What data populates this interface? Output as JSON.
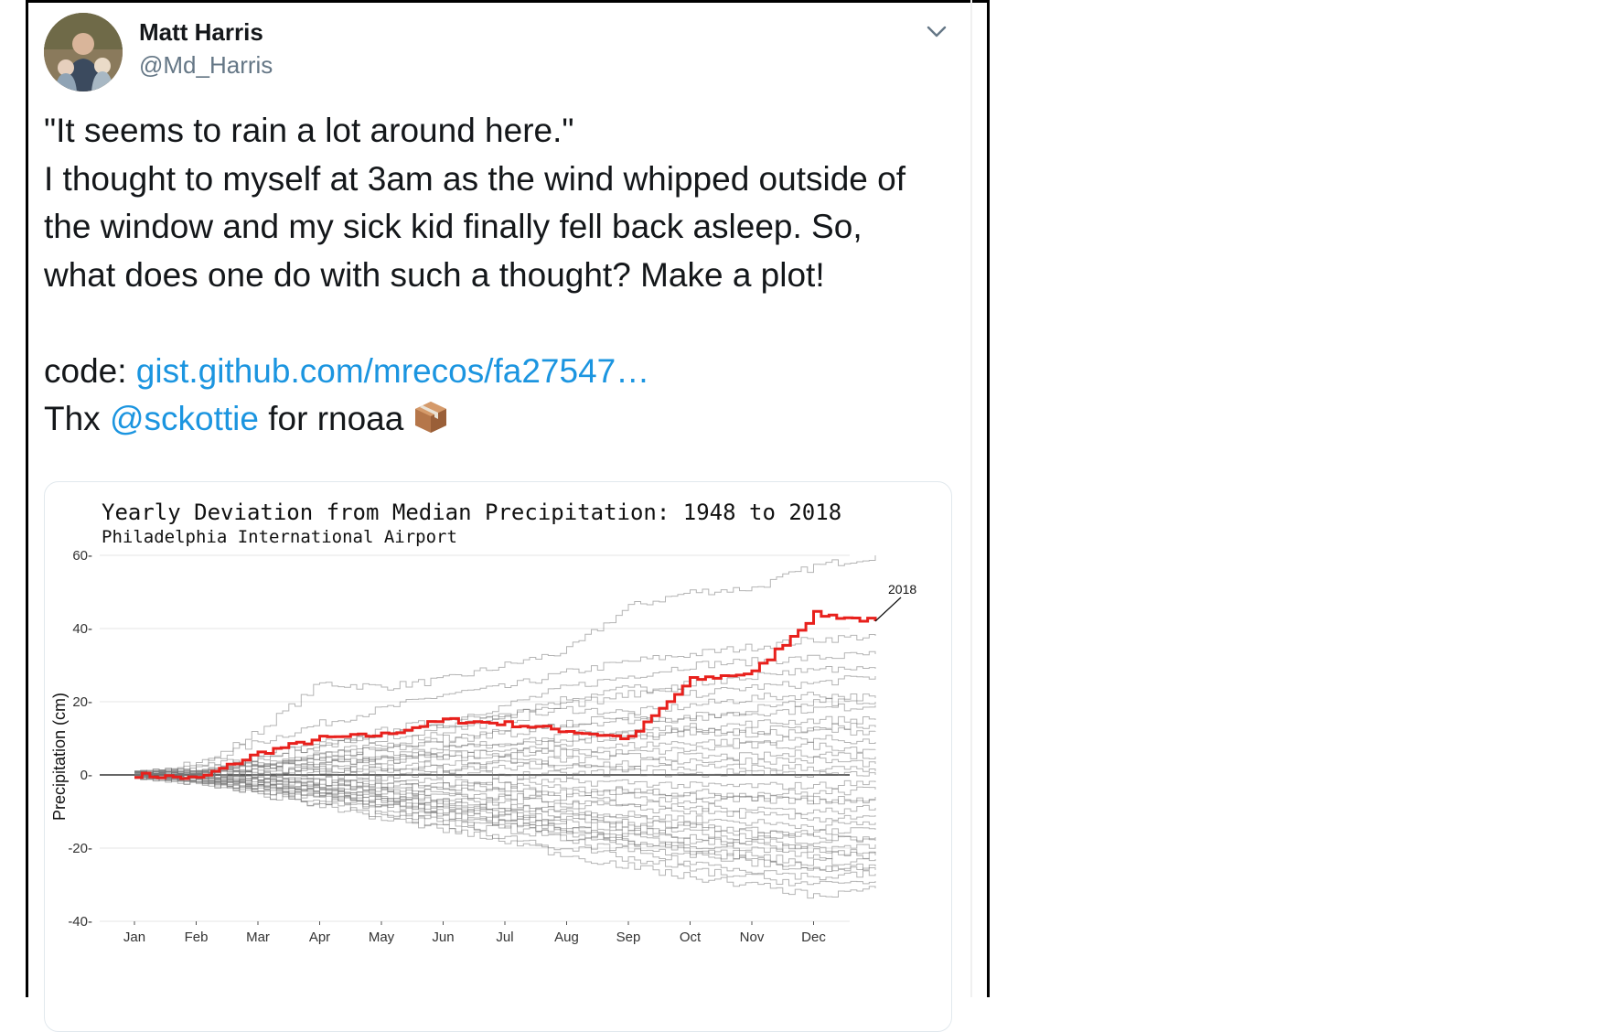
{
  "tweet": {
    "author": {
      "name": "Matt Harris",
      "handle": "@Md_Harris"
    },
    "text_lines": [
      "\"It seems to rain a lot around here.\"",
      "I thought to myself at 3am as the wind whipped outside of",
      "the window and my sick kid finally fell back asleep. So,",
      "what does one do with such a thought? Make a plot!"
    ],
    "code_prefix": "code: ",
    "code_link": "gist.github.com/mrecos/fa27547…",
    "thx_prefix": "Thx ",
    "mention": "@sckottie",
    "thx_suffix": " for rnoaa",
    "emoji_icon": "package-icon",
    "menu_icon": "chevron-down-icon"
  },
  "chart_data": {
    "type": "line",
    "title": "Yearly Deviation from Median Precipitation: 1948 to 2018",
    "subtitle": "Philadelphia International Airport",
    "ylabel": "Precipitation (cm)",
    "xlabel": "",
    "ylim": [
      -40,
      60
    ],
    "yticks": [
      -40,
      -20,
      0,
      20,
      40,
      60
    ],
    "categories": [
      "Jan",
      "Feb",
      "Mar",
      "Apr",
      "May",
      "Jun",
      "Jul",
      "Aug",
      "Sep",
      "Oct",
      "Nov",
      "Dec"
    ],
    "grid": true,
    "highlight_color": "#e8201c",
    "background_series_color": "#777777",
    "annotation": {
      "label": "2018",
      "series": "2018"
    },
    "series": [
      {
        "name": "2018",
        "month_values": [
          0,
          -1,
          6,
          10,
          11,
          15,
          14,
          12,
          10,
          26,
          28,
          44,
          42
        ]
      },
      {
        "month_values": [
          0,
          2,
          12,
          25,
          24,
          26,
          30,
          34,
          46,
          50,
          51,
          57,
          60
        ]
      },
      {
        "month_values": [
          0,
          3,
          9,
          14,
          18,
          22,
          24,
          28,
          31,
          33,
          35,
          37,
          38
        ]
      },
      {
        "month_values": [
          0,
          1,
          4,
          7,
          12,
          15,
          19,
          24,
          27,
          30,
          31,
          32,
          33
        ]
      },
      {
        "month_values": [
          0,
          2,
          5,
          9,
          11,
          14,
          17,
          21,
          24,
          22,
          24,
          25,
          27
        ]
      },
      {
        "month_values": [
          0,
          1,
          3,
          6,
          8,
          12,
          15,
          18,
          17,
          19,
          21,
          22,
          21
        ]
      },
      {
        "month_values": [
          0,
          1,
          2,
          5,
          7,
          9,
          12,
          14,
          15,
          16,
          17,
          18,
          19
        ]
      },
      {
        "month_values": [
          0,
          0,
          2,
          4,
          5,
          7,
          9,
          11,
          12,
          13,
          14,
          15,
          15
        ]
      },
      {
        "month_values": [
          0,
          1,
          3,
          4,
          6,
          7,
          8,
          10,
          11,
          12,
          11,
          12,
          12
        ]
      },
      {
        "month_values": [
          0,
          0,
          1,
          2,
          4,
          5,
          6,
          7,
          8,
          9,
          9,
          10,
          9
        ]
      },
      {
        "month_values": [
          0,
          1,
          2,
          3,
          4,
          5,
          5,
          6,
          6,
          7,
          8,
          8,
          7
        ]
      },
      {
        "month_values": [
          0,
          0,
          1,
          2,
          2,
          3,
          4,
          4,
          5,
          5,
          5,
          6,
          5
        ]
      },
      {
        "month_values": [
          0,
          0,
          1,
          1,
          2,
          2,
          3,
          3,
          3,
          4,
          4,
          4,
          3
        ]
      },
      {
        "month_values": [
          0,
          0,
          0,
          1,
          1,
          1,
          2,
          2,
          2,
          2,
          2,
          2,
          1
        ]
      },
      {
        "month_values": [
          0,
          0,
          0,
          0,
          0,
          0,
          0,
          0,
          1,
          0,
          1,
          0,
          0
        ]
      },
      {
        "month_values": [
          0,
          0,
          -1,
          -1,
          -1,
          -2,
          -2,
          -2,
          -2,
          -3,
          -3,
          -3,
          -2
        ]
      },
      {
        "month_values": [
          0,
          0,
          -1,
          -2,
          -2,
          -3,
          -3,
          -4,
          -4,
          -5,
          -5,
          -5,
          -4
        ]
      },
      {
        "month_values": [
          0,
          -1,
          -1,
          -2,
          -3,
          -4,
          -5,
          -6,
          -6,
          -7,
          -7,
          -7,
          -6
        ]
      },
      {
        "month_values": [
          0,
          0,
          -1,
          -3,
          -4,
          -5,
          -6,
          -7,
          -8,
          -9,
          -9,
          -10,
          -9
        ]
      },
      {
        "month_values": [
          0,
          -1,
          -2,
          -3,
          -4,
          -6,
          -7,
          -8,
          -9,
          -10,
          -11,
          -12,
          -11
        ]
      },
      {
        "month_values": [
          0,
          -1,
          -2,
          -3,
          -5,
          -7,
          -8,
          -10,
          -11,
          -12,
          -13,
          -14,
          -13
        ]
      },
      {
        "month_values": [
          0,
          -1,
          -2,
          -4,
          -5,
          -7,
          -9,
          -11,
          -12,
          -14,
          -15,
          -16,
          -15
        ]
      },
      {
        "month_values": [
          0,
          -1,
          -3,
          -5,
          -6,
          -8,
          -10,
          -12,
          -14,
          -16,
          -17,
          -18,
          -17
        ]
      },
      {
        "month_values": [
          0,
          -1,
          -3,
          -4,
          -7,
          -9,
          -11,
          -13,
          -15,
          -17,
          -18,
          -20,
          -19
        ]
      },
      {
        "month_values": [
          0,
          -2,
          -3,
          -5,
          -7,
          -10,
          -12,
          -15,
          -17,
          -19,
          -20,
          -22,
          -21
        ]
      },
      {
        "month_values": [
          0,
          -1,
          -4,
          -6,
          -8,
          -11,
          -13,
          -16,
          -18,
          -20,
          -22,
          -24,
          -23
        ]
      },
      {
        "month_values": [
          0,
          -2,
          -4,
          -6,
          -9,
          -12,
          -14,
          -17,
          -19,
          -22,
          -24,
          -26,
          -25
        ]
      },
      {
        "month_values": [
          0,
          -2,
          -4,
          -7,
          -10,
          -13,
          -15,
          -18,
          -21,
          -24,
          -26,
          -28,
          -27
        ]
      },
      {
        "month_values": [
          0,
          -2,
          -5,
          -8,
          -11,
          -14,
          -17,
          -20,
          -23,
          -26,
          -28,
          -30,
          -29
        ]
      },
      {
        "month_values": [
          0,
          -2,
          -5,
          -8,
          -12,
          -15,
          -18,
          -22,
          -25,
          -28,
          -30,
          -33,
          -31
        ]
      },
      {
        "month_values": [
          0,
          1,
          5,
          8,
          10,
          13,
          16,
          19,
          22,
          25,
          27,
          29,
          29
        ]
      },
      {
        "month_values": [
          0,
          1,
          3,
          5,
          7,
          10,
          11,
          14,
          16,
          15,
          18,
          20,
          20
        ]
      },
      {
        "month_values": [
          0,
          0,
          2,
          3,
          5,
          6,
          7,
          9,
          10,
          12,
          12,
          13,
          13
        ]
      },
      {
        "month_values": [
          0,
          -1,
          -2,
          -2,
          -3,
          -3,
          -4,
          -5,
          -4,
          -6,
          -6,
          -7,
          -7
        ]
      },
      {
        "month_values": [
          0,
          -1,
          -2,
          -4,
          -6,
          -8,
          -9,
          -10,
          -13,
          -14,
          -16,
          -17,
          -18
        ]
      },
      {
        "month_values": [
          0,
          -1,
          -3,
          -5,
          -7,
          -10,
          -11,
          -14,
          -16,
          -18,
          -19,
          -21,
          -22
        ]
      },
      {
        "month_values": [
          0,
          -2,
          -3,
          -6,
          -8,
          -11,
          -13,
          -15,
          -18,
          -21,
          -23,
          -25,
          -26
        ]
      }
    ]
  }
}
